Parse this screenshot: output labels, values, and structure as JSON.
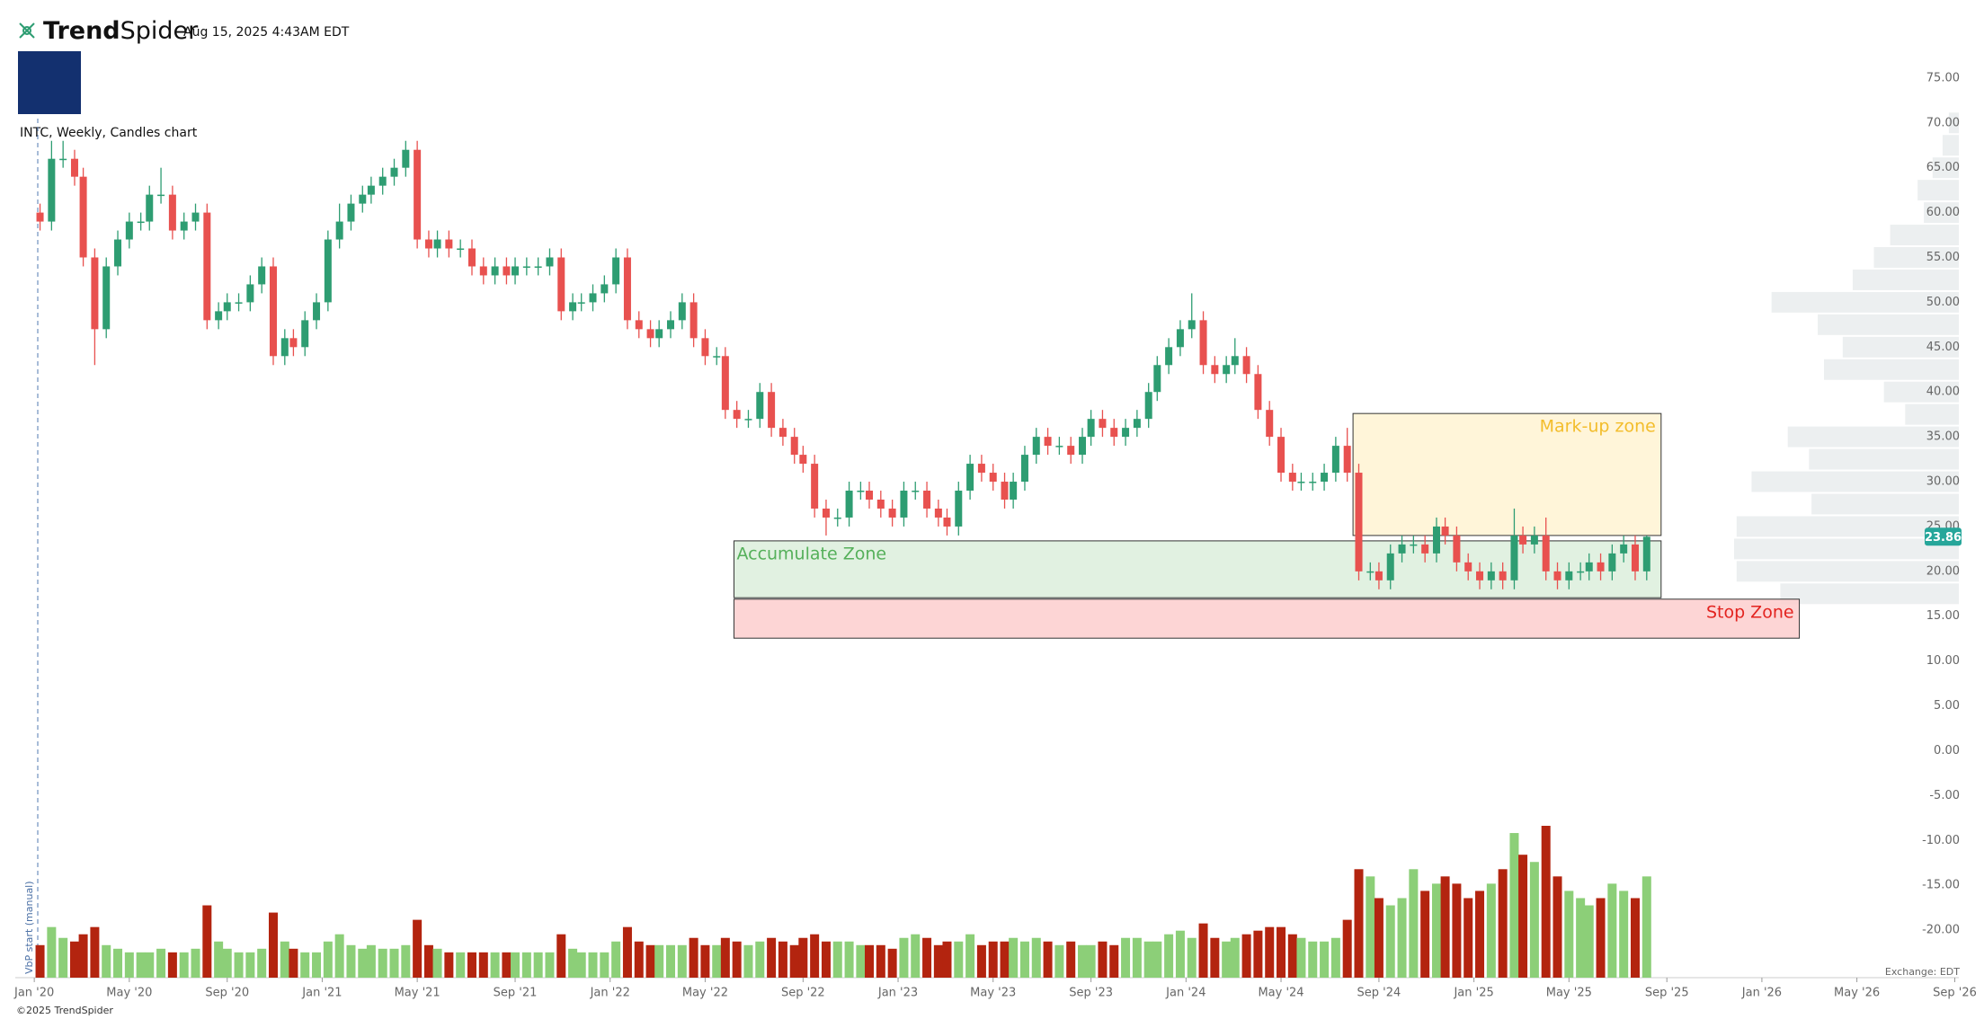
{
  "header": {
    "logo_bold": "Trend",
    "logo_light": "Spider",
    "timestamp": "Aug 15, 2025 4:43AM EDT",
    "copyright": "©2025 TrendSpider",
    "exchange": "Exchange: EDT",
    "vbp_note": "VbP start (manual)"
  },
  "chart_data": {
    "type": "candlestick",
    "title": "INTC, Weekly, Candles chart",
    "up_color": "#2e9d72",
    "down_color": "#e8514f",
    "volume_up_color": "#8ccf78",
    "volume_down_color": "#b3240f",
    "profile_color": "#eceff0",
    "grid": false,
    "xlim": [
      2019.934,
      2026.684
    ],
    "ylim": [
      -25.3,
      82.5
    ],
    "xticks": [
      {
        "value": 2020,
        "label": "Jan '20"
      },
      {
        "value": 2020.33,
        "label": "May '20"
      },
      {
        "value": 2020.67,
        "label": "Sep '20"
      },
      {
        "value": 2021,
        "label": "Jan '21"
      },
      {
        "value": 2021.33,
        "label": "May '21"
      },
      {
        "value": 2021.67,
        "label": "Sep '21"
      },
      {
        "value": 2022,
        "label": "Jan '22"
      },
      {
        "value": 2022.33,
        "label": "May '22"
      },
      {
        "value": 2022.67,
        "label": "Sep '22"
      },
      {
        "value": 2023,
        "label": "Jan '23"
      },
      {
        "value": 2023.33,
        "label": "May '23"
      },
      {
        "value": 2023.67,
        "label": "Sep '23"
      },
      {
        "value": 2024,
        "label": "Jan '24"
      },
      {
        "value": 2024.33,
        "label": "May '24"
      },
      {
        "value": 2024.67,
        "label": "Sep '24"
      },
      {
        "value": 2025,
        "label": "Jan '25"
      },
      {
        "value": 2025.33,
        "label": "May '25"
      },
      {
        "value": 2025.67,
        "label": "Sep '25"
      },
      {
        "value": 2026,
        "label": "Jan '26"
      },
      {
        "value": 2026.33,
        "label": "May '26"
      },
      {
        "value": 2026.67,
        "label": "Sep '26"
      }
    ],
    "yticks": [
      {
        "value": 75,
        "label": "75.00"
      },
      {
        "value": 70,
        "label": "70.00"
      },
      {
        "value": 65,
        "label": "65.00"
      },
      {
        "value": 60,
        "label": "60.00"
      },
      {
        "value": 55,
        "label": "55.00"
      },
      {
        "value": 50,
        "label": "50.00"
      },
      {
        "value": 45,
        "label": "45.00"
      },
      {
        "value": 40,
        "label": "40.00"
      },
      {
        "value": 35,
        "label": "35.00"
      },
      {
        "value": 30,
        "label": "30.00"
      },
      {
        "value": 25,
        "label": "25.00"
      },
      {
        "value": 20,
        "label": "20.00"
      },
      {
        "value": 15,
        "label": "15.00"
      },
      {
        "value": 10,
        "label": "10.00"
      },
      {
        "value": 5,
        "label": "5.00"
      },
      {
        "value": 0,
        "label": "0.00"
      },
      {
        "value": -5,
        "label": "-5.00"
      },
      {
        "value": -10,
        "label": "-10.00"
      },
      {
        "value": -15,
        "label": "-15.00"
      },
      {
        "value": -20,
        "label": "-20.00"
      }
    ],
    "x": [
      2020.02,
      2020.06,
      2020.1,
      2020.14,
      2020.17,
      2020.21,
      2020.25,
      2020.29,
      2020.33,
      2020.37,
      2020.4,
      2020.44,
      2020.48,
      2020.52,
      2020.56,
      2020.6,
      2020.64,
      2020.67,
      2020.71,
      2020.75,
      2020.79,
      2020.83,
      2020.87,
      2020.9,
      2020.94,
      2020.98,
      2021.02,
      2021.06,
      2021.1,
      2021.14,
      2021.17,
      2021.21,
      2021.25,
      2021.29,
      2021.33,
      2021.37,
      2021.4,
      2021.44,
      2021.48,
      2021.52,
      2021.56,
      2021.6,
      2021.64,
      2021.67,
      2021.71,
      2021.75,
      2021.79,
      2021.83,
      2021.87,
      2021.9,
      2021.94,
      2021.98,
      2022.02,
      2022.06,
      2022.1,
      2022.14,
      2022.17,
      2022.21,
      2022.25,
      2022.29,
      2022.33,
      2022.37,
      2022.4,
      2022.44,
      2022.48,
      2022.52,
      2022.56,
      2022.6,
      2022.64,
      2022.67,
      2022.71,
      2022.75,
      2022.79,
      2022.83,
      2022.87,
      2022.9,
      2022.94,
      2022.98,
      2023.02,
      2023.06,
      2023.1,
      2023.14,
      2023.17,
      2023.21,
      2023.25,
      2023.29,
      2023.33,
      2023.37,
      2023.4,
      2023.44,
      2023.48,
      2023.52,
      2023.56,
      2023.6,
      2023.64,
      2023.67,
      2023.71,
      2023.75,
      2023.79,
      2023.83,
      2023.87,
      2023.9,
      2023.94,
      2023.98,
      2024.02,
      2024.06,
      2024.1,
      2024.14,
      2024.17,
      2024.21,
      2024.25,
      2024.29,
      2024.33,
      2024.37,
      2024.4,
      2024.44,
      2024.48,
      2024.52,
      2024.56,
      2024.6,
      2024.64,
      2024.67,
      2024.71,
      2024.75,
      2024.79,
      2024.83,
      2024.87,
      2024.9,
      2024.94,
      2024.98,
      2025.02,
      2025.06,
      2025.1,
      2025.14,
      2025.17,
      2025.21,
      2025.25,
      2025.29,
      2025.33,
      2025.37,
      2025.4,
      2025.44,
      2025.48,
      2025.52,
      2025.56,
      2025.6
    ],
    "open": [
      60,
      59,
      66,
      66,
      64,
      55,
      47,
      54,
      57,
      59,
      59,
      62,
      62,
      58,
      59,
      60,
      48,
      49,
      50,
      50,
      52,
      54,
      44,
      46,
      45,
      48,
      50,
      57,
      59,
      61,
      62,
      63,
      64,
      65,
      67,
      57,
      56,
      57,
      56,
      56,
      54,
      53,
      54,
      53,
      54,
      54,
      54,
      55,
      49,
      50,
      50,
      51,
      52,
      55,
      48,
      47,
      46,
      47,
      48,
      50,
      46,
      44,
      44,
      38,
      37,
      37,
      40,
      36,
      35,
      33,
      32,
      27,
      26,
      26,
      29,
      29,
      28,
      27,
      26,
      29,
      29,
      27,
      26,
      25,
      29,
      32,
      31,
      30,
      28,
      30,
      33,
      35,
      34,
      34,
      33,
      35,
      37,
      36,
      35,
      36,
      37,
      40,
      43,
      45,
      47,
      48,
      43,
      42,
      43,
      44,
      42,
      38,
      35,
      31,
      30,
      30,
      30,
      31,
      34,
      31,
      20,
      20,
      19,
      22,
      23,
      23,
      22,
      25,
      24,
      21,
      20,
      19,
      20,
      19,
      24,
      23,
      24,
      20,
      19,
      20,
      20,
      21,
      20,
      22,
      23,
      20
    ],
    "high": [
      61,
      68,
      68,
      67,
      65,
      56,
      55,
      58,
      60,
      60,
      63,
      65,
      63,
      60,
      61,
      61,
      50,
      51,
      51,
      53,
      55,
      55,
      47,
      47,
      49,
      51,
      58,
      61,
      62,
      63,
      64,
      65,
      66,
      68,
      68,
      58,
      58,
      58,
      57,
      57,
      55,
      55,
      55,
      55,
      55,
      55,
      56,
      56,
      51,
      51,
      52,
      53,
      56,
      56,
      49,
      48,
      48,
      49,
      51,
      51,
      47,
      45,
      45,
      39,
      38,
      41,
      41,
      37,
      36,
      34,
      33,
      28,
      27,
      30,
      30,
      30,
      29,
      28,
      30,
      30,
      30,
      28,
      27,
      30,
      33,
      33,
      32,
      31,
      31,
      34,
      36,
      36,
      35,
      35,
      36,
      38,
      38,
      37,
      37,
      38,
      41,
      44,
      46,
      48,
      51,
      49,
      44,
      44,
      46,
      45,
      43,
      39,
      36,
      32,
      31,
      31,
      32,
      35,
      36,
      32,
      21,
      21,
      23,
      24,
      24,
      24,
      26,
      26,
      25,
      22,
      21,
      21,
      21,
      27,
      25,
      25,
      26,
      21,
      21,
      21,
      22,
      22,
      23,
      24,
      24,
      24
    ],
    "low": [
      58,
      58,
      65,
      63,
      54,
      43,
      46,
      53,
      56,
      58,
      58,
      61,
      57,
      57,
      58,
      47,
      47,
      48,
      49,
      49,
      51,
      43,
      43,
      44,
      44,
      47,
      49,
      56,
      58,
      60,
      61,
      62,
      63,
      64,
      56,
      55,
      55,
      55,
      55,
      53,
      52,
      52,
      52,
      52,
      53,
      53,
      53,
      48,
      48,
      49,
      49,
      50,
      51,
      47,
      46,
      45,
      45,
      46,
      47,
      45,
      43,
      43,
      37,
      36,
      36,
      36,
      35,
      34,
      32,
      31,
      26,
      24,
      25,
      25,
      28,
      27,
      26,
      25,
      25,
      28,
      26,
      25,
      24,
      24,
      28,
      30,
      29,
      27,
      27,
      29,
      32,
      33,
      33,
      32,
      32,
      34,
      35,
      34,
      34,
      35,
      36,
      39,
      42,
      44,
      46,
      42,
      41,
      41,
      42,
      41,
      37,
      34,
      30,
      29,
      29,
      29,
      29,
      30,
      30,
      19,
      19,
      18,
      18,
      21,
      22,
      21,
      21,
      23,
      20,
      19,
      18,
      18,
      18,
      18,
      22,
      22,
      19,
      18,
      18,
      19,
      19,
      19,
      19,
      21,
      19,
      19
    ],
    "close": [
      59,
      66,
      66,
      64,
      55,
      47,
      54,
      57,
      59,
      59,
      62,
      62,
      58,
      59,
      60,
      48,
      49,
      50,
      50,
      52,
      54,
      44,
      46,
      45,
      48,
      50,
      57,
      59,
      61,
      62,
      63,
      64,
      65,
      67,
      57,
      56,
      57,
      56,
      56,
      54,
      53,
      54,
      53,
      54,
      54,
      54,
      55,
      49,
      50,
      50,
      51,
      52,
      55,
      48,
      47,
      46,
      47,
      48,
      50,
      46,
      44,
      44,
      38,
      37,
      37,
      40,
      36,
      35,
      33,
      32,
      27,
      26,
      26,
      29,
      29,
      28,
      27,
      26,
      29,
      29,
      27,
      26,
      25,
      29,
      32,
      31,
      30,
      28,
      30,
      33,
      35,
      34,
      34,
      33,
      35,
      37,
      36,
      35,
      36,
      37,
      40,
      43,
      45,
      47,
      48,
      43,
      42,
      43,
      44,
      42,
      38,
      35,
      31,
      30,
      30,
      30,
      31,
      34,
      31,
      20,
      20,
      19,
      22,
      23,
      23,
      22,
      25,
      24,
      21,
      20,
      19,
      20,
      19,
      24,
      23,
      24,
      20,
      19,
      20,
      20,
      21,
      20,
      22,
      23,
      20,
      23.86
    ],
    "volume": [
      45,
      70,
      55,
      50,
      60,
      70,
      45,
      40,
      35,
      35,
      35,
      40,
      35,
      35,
      40,
      100,
      50,
      40,
      35,
      35,
      40,
      90,
      50,
      40,
      35,
      35,
      50,
      60,
      45,
      40,
      45,
      40,
      40,
      45,
      80,
      45,
      40,
      35,
      35,
      35,
      35,
      35,
      35,
      35,
      35,
      35,
      35,
      60,
      40,
      35,
      35,
      35,
      50,
      70,
      50,
      45,
      45,
      45,
      45,
      55,
      45,
      45,
      55,
      50,
      45,
      50,
      55,
      50,
      45,
      55,
      60,
      50,
      50,
      50,
      45,
      45,
      45,
      40,
      55,
      60,
      55,
      45,
      50,
      50,
      60,
      45,
      50,
      50,
      55,
      50,
      55,
      50,
      45,
      50,
      45,
      45,
      50,
      45,
      55,
      55,
      50,
      50,
      60,
      65,
      55,
      75,
      55,
      50,
      55,
      60,
      65,
      70,
      70,
      60,
      55,
      50,
      50,
      55,
      80,
      150,
      140,
      110,
      100,
      110,
      150,
      120,
      130,
      140,
      130,
      110,
      120,
      130,
      150,
      200,
      170,
      160,
      210,
      140,
      120,
      110,
      100,
      110,
      130,
      120,
      110,
      140
    ],
    "volume_profile": {
      "bins": [
        16.25,
        18.75,
        21.25,
        23.75,
        26.25,
        28.75,
        31.25,
        33.75,
        36.25,
        38.75,
        41.25,
        43.75,
        46.25,
        48.75,
        51.25,
        53.75,
        56.25,
        58.75,
        61.25,
        63.75,
        66.25,
        68.75,
        71.25
      ],
      "values": [
        143,
        178,
        180,
        178,
        118,
        166,
        120,
        137,
        43,
        60,
        108,
        93,
        113,
        150,
        85,
        68,
        55,
        28,
        33,
        21,
        13,
        8
      ]
    },
    "zones": [
      {
        "label": "Accumulate Zone",
        "x": [
          2022.43,
          2025.65
        ],
        "y": [
          17.06,
          23.4
        ],
        "fill": "#dcefdc",
        "text_color": "#55b05a",
        "label_corner": "top-left"
      },
      {
        "label": "Stop Zone",
        "x": [
          2022.43,
          2026.13
        ],
        "y": [
          12.55,
          16.9
        ],
        "fill": "#fdcece",
        "text_color": "#e3231f",
        "label_corner": "top-right"
      },
      {
        "label": "Mark-up zone",
        "x": [
          2024.58,
          2025.65
        ],
        "y": [
          24.0,
          37.6
        ],
        "fill": "#fff3d2",
        "text_color": "#f3bd2b",
        "label_corner": "top-right"
      }
    ]
  }
}
